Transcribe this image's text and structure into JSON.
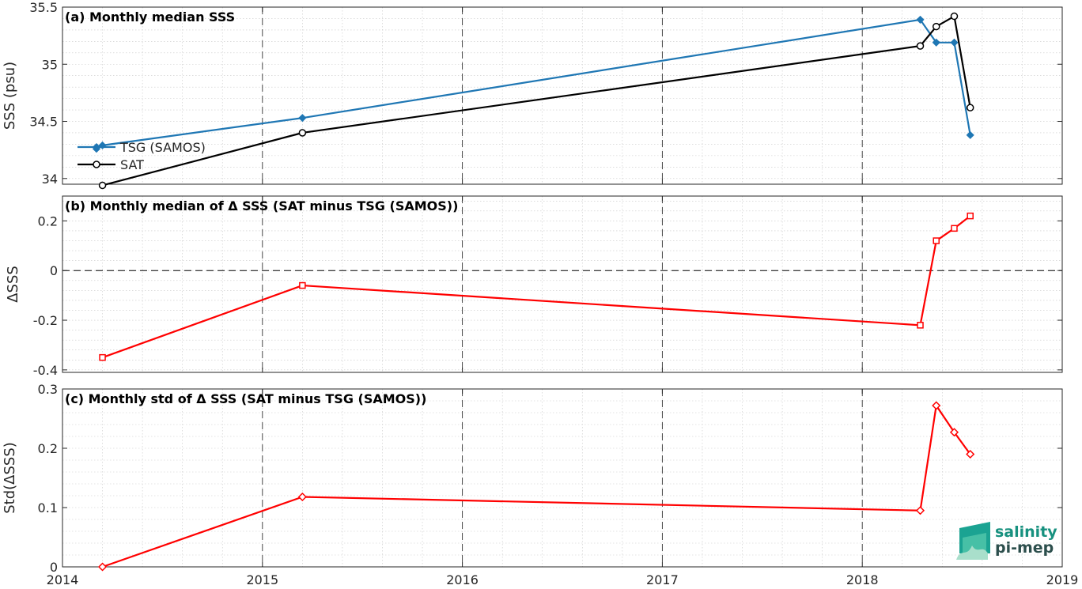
{
  "colors": {
    "tsg": "#1f77b4",
    "sat": "#000000",
    "delta": "#ff0000",
    "grid": "#000000"
  },
  "x_ticks": [
    "2014",
    "2015",
    "2016",
    "2017",
    "2018",
    "2019"
  ],
  "logo": {
    "line1": "salinity",
    "line2": "pi-mep"
  },
  "chart_data": [
    {
      "type": "line",
      "title": "(a) Monthly median SSS",
      "xlabel": "",
      "ylabel": "SSS (psu)",
      "xlim": [
        2014,
        2019
      ],
      "ylim": [
        33.95,
        35.5
      ],
      "yticks": [
        34,
        34.5,
        35,
        35.5
      ],
      "ytick_labels": [
        "34",
        "34.5",
        "35",
        "35.5"
      ],
      "legend": "left",
      "series": [
        {
          "name": "TSG (SAMOS)",
          "marker": "diamond-filled",
          "x": [
            2014.17,
            2014.2,
            2015.2,
            2018.29,
            2018.37,
            2018.46,
            2018.54
          ],
          "y": [
            34.26,
            34.29,
            34.53,
            35.39,
            35.19,
            35.19,
            34.38
          ]
        },
        {
          "name": "SAT",
          "marker": "circle",
          "x": [
            2014.2,
            2015.2,
            2018.29,
            2018.37,
            2018.46,
            2018.54
          ],
          "y": [
            33.94,
            34.4,
            35.16,
            35.33,
            35.42,
            34.62
          ]
        }
      ]
    },
    {
      "type": "line",
      "title": "(b) Monthly median of Δ SSS (SAT minus TSG (SAMOS))",
      "xlabel": "",
      "ylabel": "ΔSSS",
      "xlim": [
        2014,
        2019
      ],
      "ylim": [
        -0.41,
        0.3
      ],
      "yticks": [
        -0.4,
        -0.2,
        0,
        0.2
      ],
      "ytick_labels": [
        "-0.4",
        "-0.2",
        "0",
        "0.2"
      ],
      "zero_line": true,
      "series": [
        {
          "name": "",
          "marker": "square",
          "x": [
            2014.2,
            2015.2,
            2018.29,
            2018.37,
            2018.46,
            2018.54
          ],
          "y": [
            -0.35,
            -0.06,
            -0.22,
            0.12,
            0.17,
            0.22
          ]
        }
      ]
    },
    {
      "type": "line",
      "title": "(c) Monthly std of Δ SSS (SAT minus TSG (SAMOS))",
      "xlabel": "",
      "ylabel": "Std(ΔSSS)",
      "xlim": [
        2014,
        2019
      ],
      "ylim": [
        0,
        0.3
      ],
      "yticks": [
        0,
        0.1,
        0.2,
        0.3
      ],
      "ytick_labels": [
        "0",
        "0.1",
        "0.2",
        "0.3"
      ],
      "series": [
        {
          "name": "",
          "marker": "diamond",
          "x": [
            2014.2,
            2015.2,
            2018.29,
            2018.37,
            2018.46,
            2018.54
          ],
          "y": [
            0.0,
            0.118,
            0.095,
            0.272,
            0.227,
            0.19
          ]
        }
      ]
    }
  ]
}
